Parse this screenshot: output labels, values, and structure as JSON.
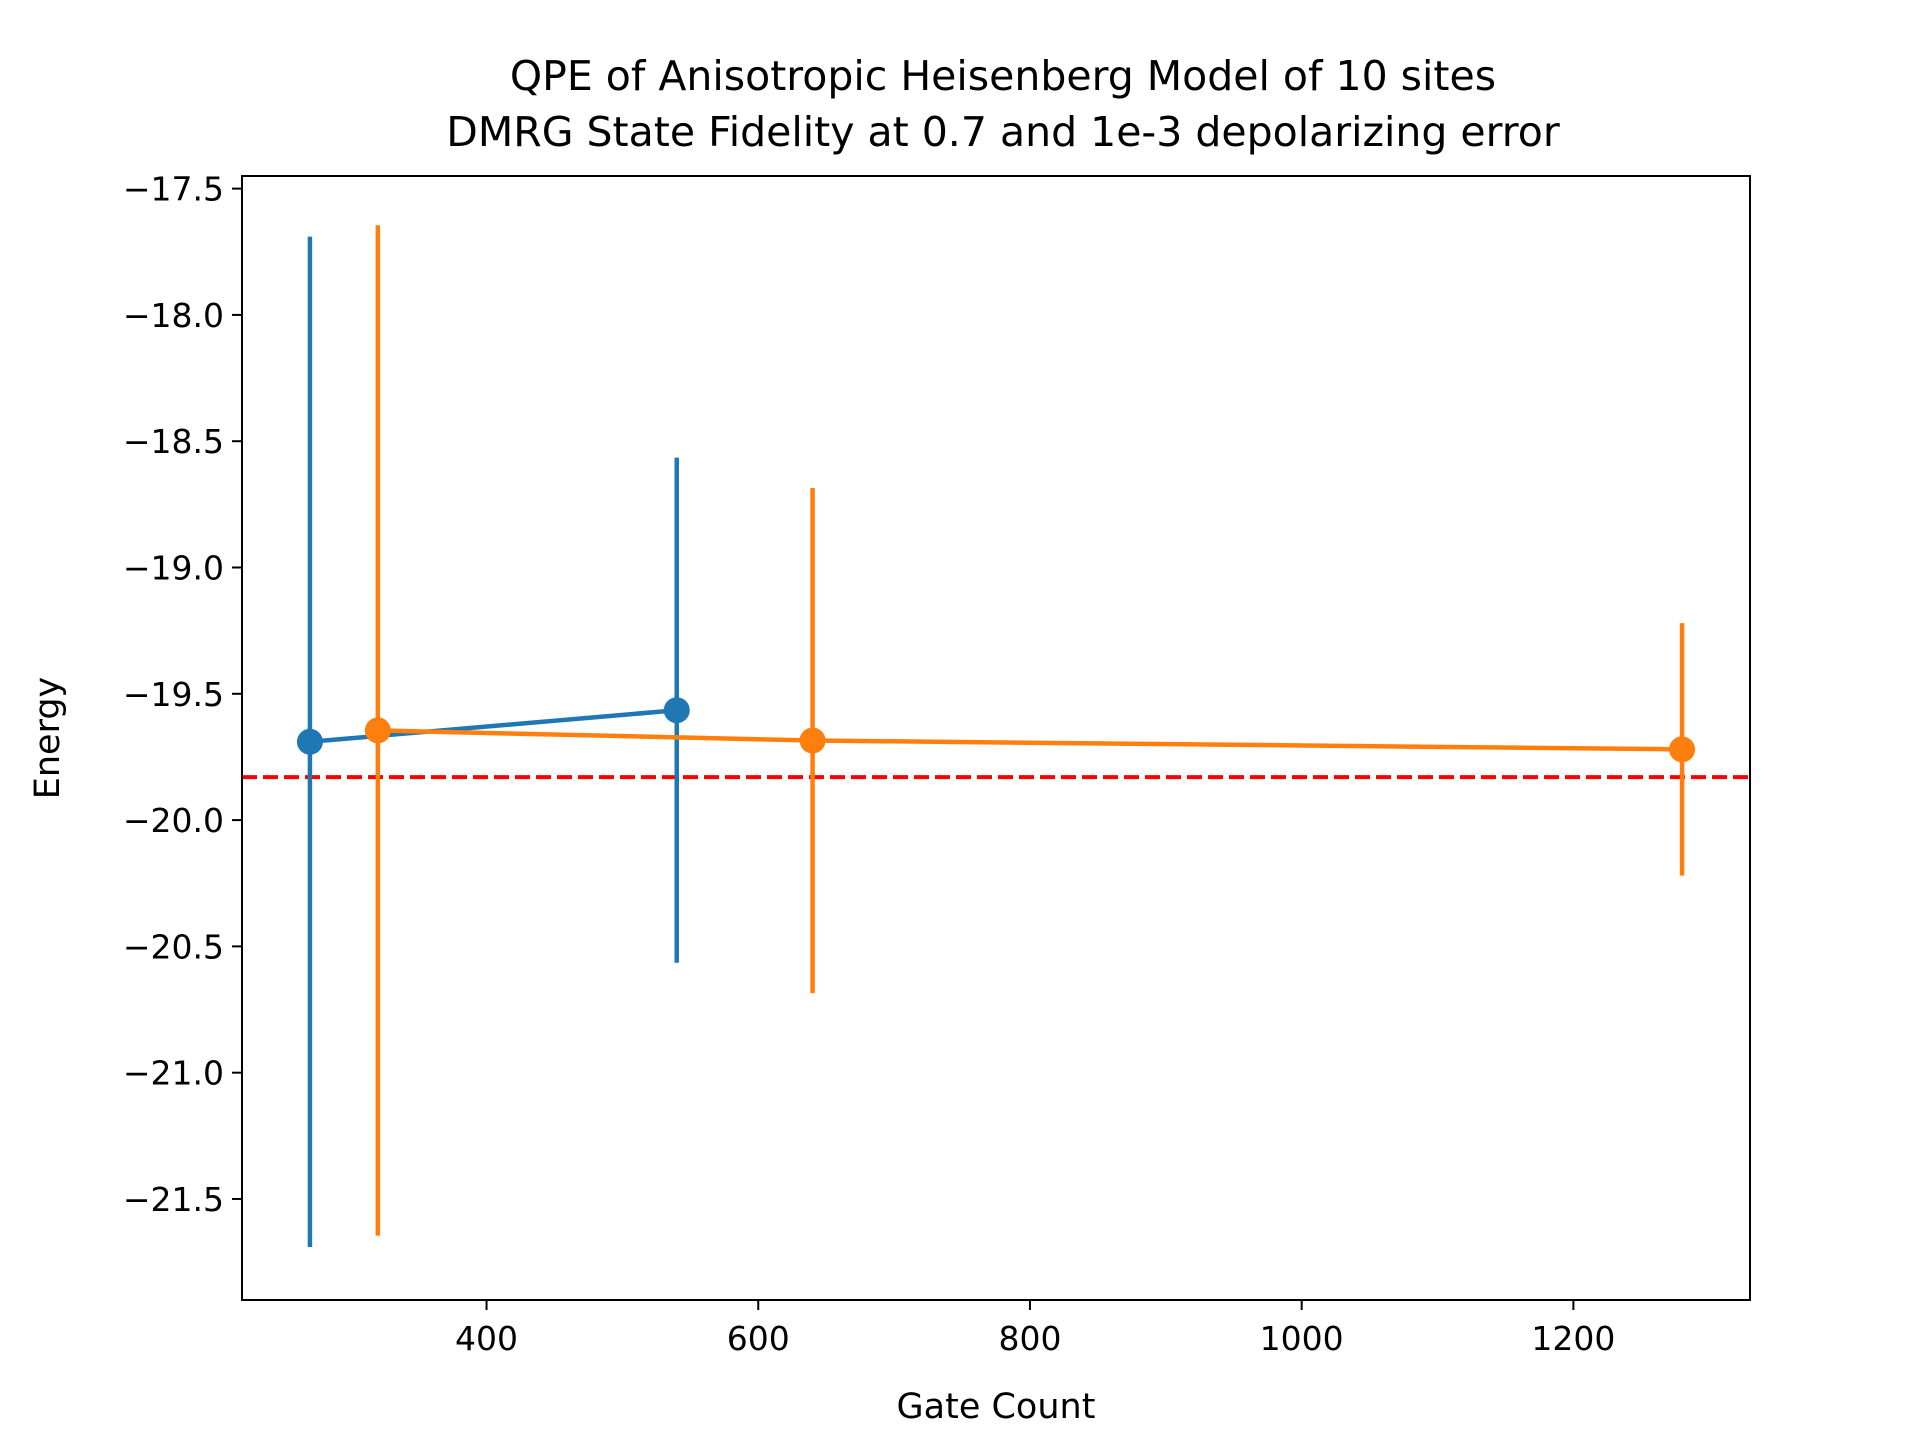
{
  "chart_data": {
    "type": "scatter",
    "title": "QPE of Anisotropic Heisenberg Model of 10 sites",
    "subtitle": "DMRG State Fidelity at 0.7 and 1e-3 depolarizing error",
    "xlabel": "Gate Count",
    "ylabel": "Energy",
    "xlim": [
      220,
      1330
    ],
    "ylim": [
      -21.9,
      -17.45
    ],
    "x_ticks": [
      400,
      600,
      800,
      1000,
      1200
    ],
    "x_tick_labels": [
      "400",
      "600",
      "800",
      "1000",
      "1200"
    ],
    "y_ticks": [
      -17.5,
      -18.0,
      -18.5,
      -19.0,
      -19.5,
      -20.0,
      -20.5,
      -21.0,
      -21.5
    ],
    "y_tick_labels": [
      "−17.5",
      "−18.0",
      "−18.5",
      "−19.0",
      "−19.5",
      "−20.0",
      "−20.5",
      "−21.0",
      "−21.5"
    ],
    "grid": false,
    "series": [
      {
        "color": "#1f77b4",
        "x": [
          270,
          540
        ],
        "y": [
          -19.69,
          -19.565
        ],
        "yerr": [
          2.0,
          1.0
        ]
      },
      {
        "color": "#ff7f0e",
        "x": [
          320,
          640,
          1280
        ],
        "y": [
          -19.645,
          -19.685,
          -19.72
        ],
        "yerr": [
          2.0,
          1.0,
          0.5
        ]
      }
    ],
    "reference_line": {
      "y": -19.83,
      "color": "#ff0000",
      "style": "dashed"
    }
  }
}
